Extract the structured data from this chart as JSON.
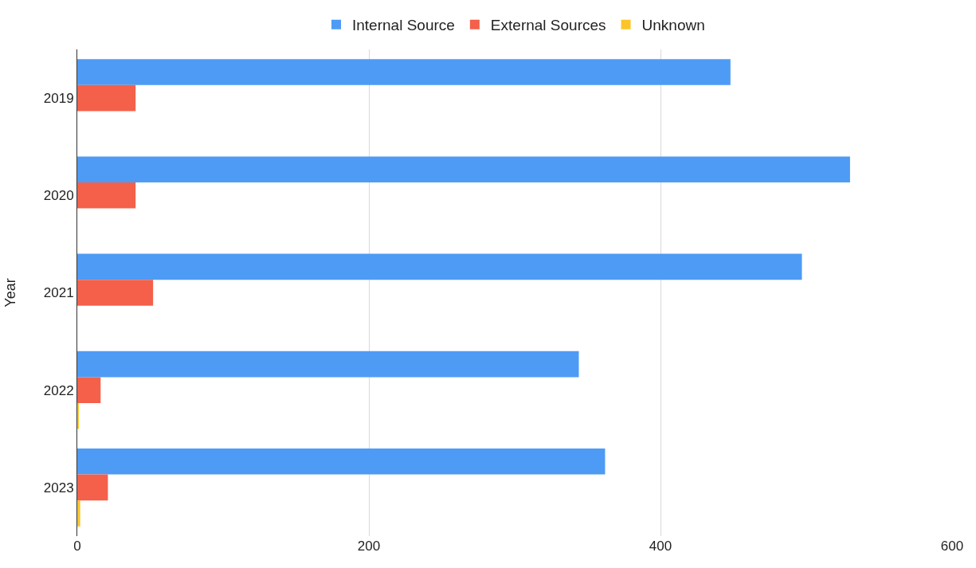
{
  "chart_data": {
    "type": "bar",
    "orientation": "horizontal",
    "ylabel": "Year",
    "categories": [
      "2019",
      "2020",
      "2021",
      "2022",
      "2023"
    ],
    "series": [
      {
        "name": "Internal Source",
        "color": "#4e9bf5",
        "values": [
          448,
          530,
          497,
          344,
          362
        ]
      },
      {
        "name": "External Sources",
        "color": "#f4604a",
        "values": [
          40,
          40,
          52,
          16,
          21
        ]
      },
      {
        "name": "Unknown",
        "color": "#fbc52a",
        "values": [
          null,
          null,
          null,
          1,
          2
        ]
      }
    ],
    "xlim": [
      0,
      600
    ],
    "xticks": [
      0,
      200,
      400,
      600
    ],
    "grid": "x",
    "legend": "top"
  }
}
